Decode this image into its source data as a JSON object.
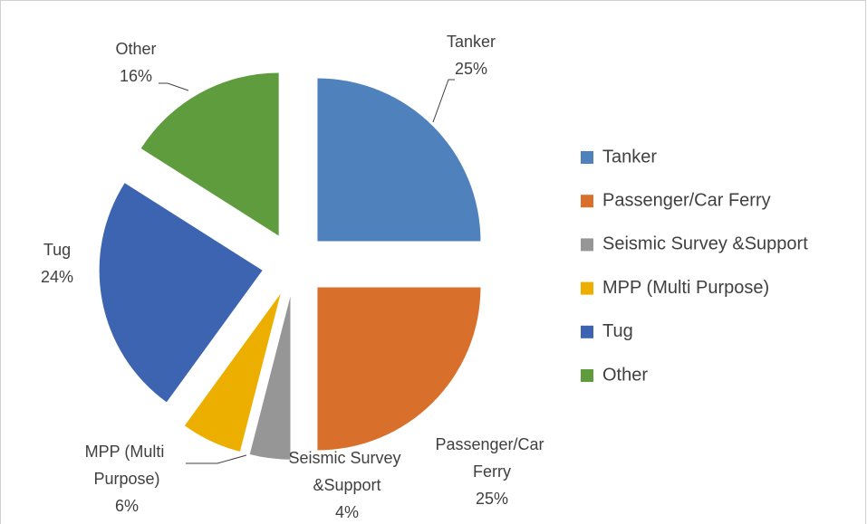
{
  "chart_data": {
    "type": "pie",
    "categories": [
      "Tanker",
      "Passenger/Car Ferry",
      "Seismic Survey &Support",
      "MPP (Multi Purpose)",
      "Tug",
      "Other"
    ],
    "values": [
      25,
      25,
      4,
      6,
      24,
      16
    ],
    "value_labels": [
      "25%",
      "25%",
      "4%",
      "6%",
      "24%",
      "16%"
    ],
    "colors": [
      "#4f81bd",
      "#d8702b",
      "#969696",
      "#ecaf00",
      "#3d64b0",
      "#5e9c3d"
    ],
    "legend": "right"
  }
}
